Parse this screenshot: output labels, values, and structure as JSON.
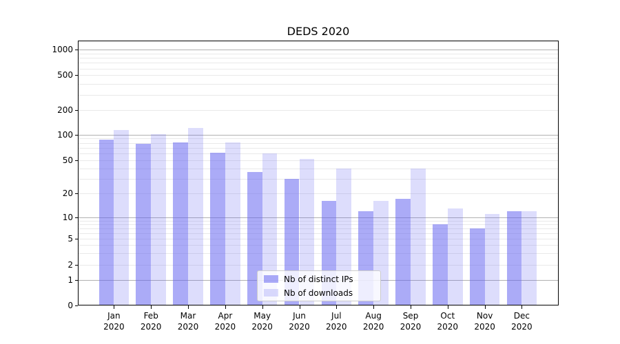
{
  "chart_data": {
    "type": "bar",
    "title": "DEDS 2020",
    "x_months": [
      "Jan",
      "Feb",
      "Mar",
      "Apr",
      "May",
      "Jun",
      "Jul",
      "Aug",
      "Sep",
      "Oct",
      "Nov",
      "Dec"
    ],
    "x_year_line": "2020",
    "series": [
      {
        "name": "Nb of distinct IPs",
        "color": "#6666f0",
        "alpha": 0.55,
        "values": [
          88,
          78,
          81,
          62,
          36,
          30,
          16,
          12,
          17,
          8,
          7,
          12
        ]
      },
      {
        "name": "Nb of downloads",
        "color": "#6666f0",
        "alpha": 0.22,
        "values": [
          115,
          102,
          120,
          81,
          60,
          52,
          40,
          16,
          40,
          13,
          11,
          12
        ]
      }
    ],
    "y_axis": {
      "scale": "symlog",
      "tick_values": [
        0,
        1,
        2,
        5,
        10,
        20,
        50,
        100,
        200,
        500,
        1000
      ],
      "tick_labels": [
        "0",
        "1",
        "2",
        "5",
        "10",
        "20",
        "50",
        "100",
        "200",
        "500",
        "1000"
      ],
      "top_value": 1280
    },
    "grid": {
      "on": true,
      "major_values": [
        1,
        10,
        100,
        1000
      ],
      "minor_multiples": [
        2,
        3,
        4,
        5,
        6,
        7,
        8,
        9
      ],
      "major_color": "#b0b0b0",
      "minor_color": "#e9e9e9"
    },
    "legend": {
      "position": "lower center",
      "entries": [
        "Nb of distinct IPs",
        "Nb of downloads"
      ]
    }
  },
  "colors": {
    "background": "#ffffff",
    "axis": "#000000",
    "text": "#000000",
    "legend_border": "#cccccc",
    "legend_background": "rgba(255,255,255,0.8)"
  }
}
